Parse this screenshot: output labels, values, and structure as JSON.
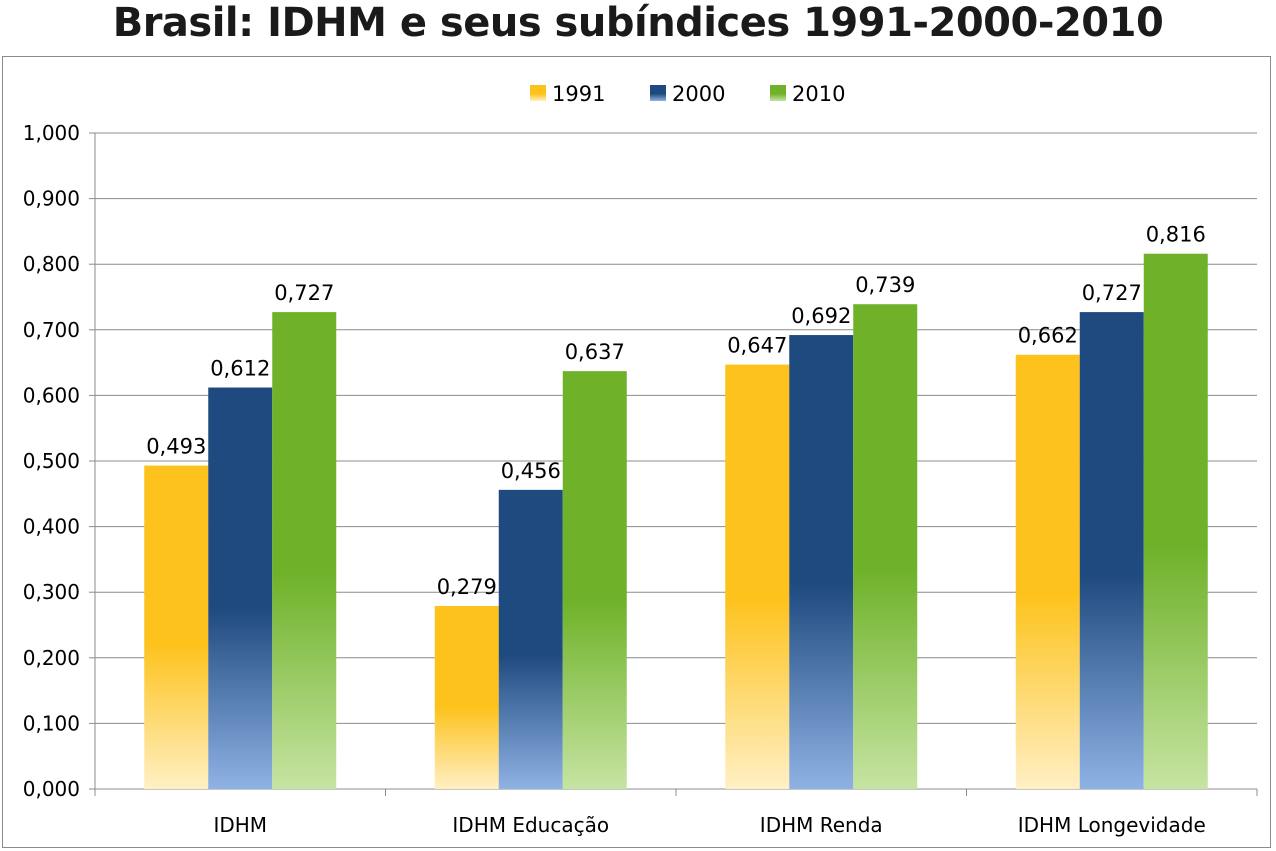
{
  "chart_data": {
    "type": "bar",
    "title": "Brasil: IDHM e seus subíndices 1991-2000-2010",
    "categories": [
      "IDHM",
      "IDHM Educação",
      "IDHM Renda",
      "IDHM Longevidade"
    ],
    "series": [
      {
        "name": "1991",
        "values": [
          0.493,
          0.279,
          0.647,
          0.662
        ],
        "labels": [
          "0,493",
          "0,279",
          "0,647",
          "0,662"
        ],
        "color_top": "#fdc21c",
        "color_bottom": "#fff0c4"
      },
      {
        "name": "2000",
        "values": [
          0.612,
          0.456,
          0.692,
          0.727
        ],
        "labels": [
          "0,612",
          "0,456",
          "0,692",
          "0,727"
        ],
        "color_top": "#1f4a7f",
        "color_bottom": "#8fb2e4"
      },
      {
        "name": "2010",
        "values": [
          0.727,
          0.637,
          0.739,
          0.816
        ],
        "labels": [
          "0,727",
          "0,637",
          "0,739",
          "0,816"
        ],
        "color_top": "#6fb22a",
        "color_bottom": "#c6e4a2"
      }
    ],
    "ylim": [
      0,
      1
    ],
    "yticks": [
      0,
      0.1,
      0.2,
      0.3,
      0.4,
      0.5,
      0.6,
      0.7,
      0.8,
      0.9,
      1.0
    ],
    "ytick_labels": [
      "0,000",
      "0,100",
      "0,200",
      "0,300",
      "0,400",
      "0,500",
      "0,600",
      "0,700",
      "0,800",
      "0,900",
      "1,000"
    ],
    "grid": true,
    "legend": "top-center",
    "xlabel": "",
    "ylabel": ""
  }
}
